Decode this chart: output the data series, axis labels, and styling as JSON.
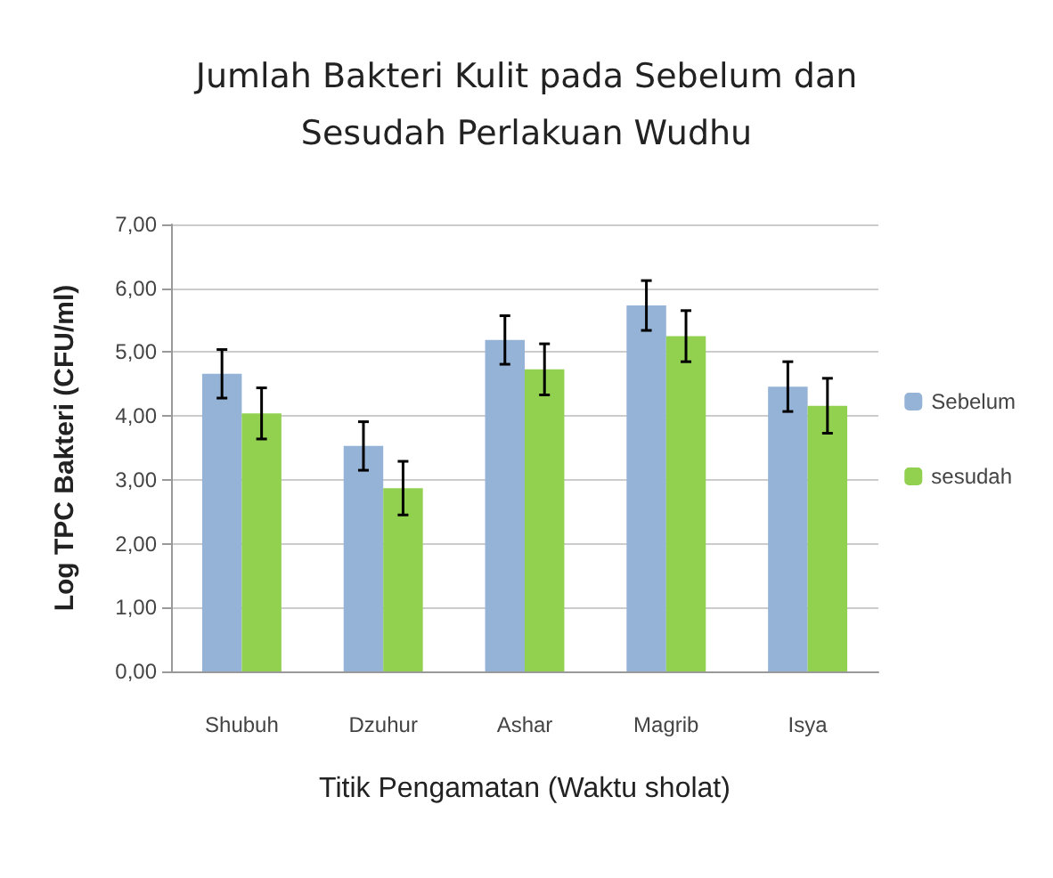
{
  "chart_data": {
    "type": "bar",
    "title": "Jumlah Bakteri Kulit pada Sebelum dan\nSesudah Perlakuan Wudhu",
    "xlabel": "Titik Pengamatan (Waktu sholat)",
    "ylabel": "Log TPC Bakteri (CFU/ml)",
    "categories": [
      "Shubuh",
      "Dzuhur",
      "Ashar",
      "Magrib",
      "Isya"
    ],
    "series": [
      {
        "name": "Sebelum",
        "color": "#95b3d7",
        "values": [
          4.66,
          3.53,
          5.19,
          5.73,
          4.46
        ],
        "errors": [
          0.38,
          0.38,
          0.38,
          0.39,
          0.39
        ]
      },
      {
        "name": "sesudah",
        "color": "#92d050",
        "values": [
          4.04,
          2.87,
          4.73,
          5.25,
          4.16
        ],
        "errors": [
          0.4,
          0.42,
          0.4,
          0.4,
          0.43
        ]
      }
    ],
    "ylim": [
      0,
      7
    ],
    "yticks": [
      {
        "value": 0,
        "label": "0,00"
      },
      {
        "value": 1,
        "label": "1,00"
      },
      {
        "value": 2,
        "label": "2,00"
      },
      {
        "value": 3,
        "label": "3,00"
      },
      {
        "value": 4,
        "label": "4,00"
      },
      {
        "value": 5,
        "label": "5,00"
      },
      {
        "value": 6,
        "label": "6,00"
      },
      {
        "value": 7,
        "label": "7,00"
      }
    ],
    "grid": "y",
    "legend": "right"
  }
}
